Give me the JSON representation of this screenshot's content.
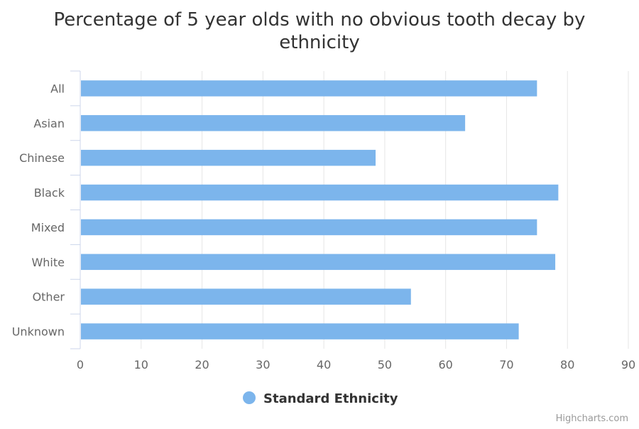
{
  "chart_data": {
    "type": "bar",
    "orientation": "horizontal",
    "title": "Percentage of 5 year olds with no obvious tooth decay by ethnicity",
    "title_lines": [
      "Percentage of 5 year olds with no obvious tooth decay by",
      "ethnicity"
    ],
    "categories": [
      "All",
      "Asian",
      "Chinese",
      "Black",
      "Mixed",
      "White",
      "Other",
      "Unknown"
    ],
    "series": [
      {
        "name": "Standard Ethnicity",
        "values": [
          75.0,
          63.2,
          48.5,
          78.5,
          75.0,
          78.0,
          54.3,
          72.0
        ]
      }
    ],
    "xlim": [
      0,
      90
    ],
    "xticks": [
      0,
      10,
      20,
      30,
      40,
      50,
      60,
      70,
      80,
      90
    ],
    "grid": true,
    "legend_position": "bottom-center",
    "bar_color": "#7cb5ec"
  },
  "credits": "Highcharts.com"
}
